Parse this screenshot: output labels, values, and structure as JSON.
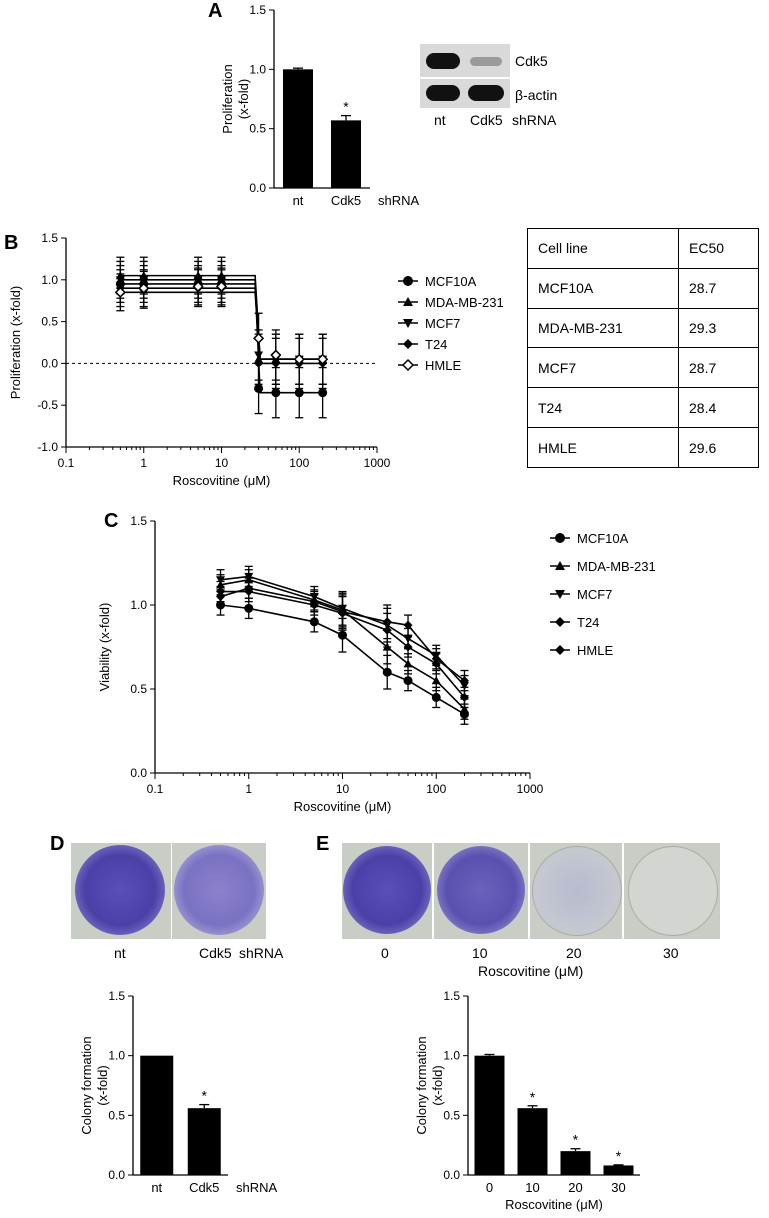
{
  "panels": {
    "A": {
      "letter": "A",
      "chart_data": {
        "type": "bar",
        "categories": [
          "nt",
          "Cdk5"
        ],
        "xsuffix": "shRNA",
        "values": [
          1.0,
          0.57
        ],
        "errors": [
          0.01,
          0.04
        ],
        "significance": [
          "",
          "*"
        ],
        "ylabel": "Proliferation (x-fold)",
        "ylim": [
          0,
          1.5
        ],
        "yticks": [
          "0.0",
          "0.5",
          "1.0",
          "1.5"
        ]
      },
      "blot": {
        "bands": [
          "Cdk5",
          "β-actin"
        ],
        "lanes": [
          "nt",
          "Cdk5",
          "shRNA"
        ]
      }
    },
    "B": {
      "letter": "B",
      "chart_data": {
        "type": "line",
        "xscale": "log",
        "xlabel": "Roscovitine (μM)",
        "ylabel": "Proliferation (x-fold)",
        "xlim": [
          0.1,
          1000
        ],
        "ylim": [
          -1.0,
          1.5
        ],
        "xticks": [
          "0.1",
          "1",
          "10",
          "100",
          "1000"
        ],
        "yticks": [
          "-1.0",
          "-0.5",
          "0.0",
          "0.5",
          "1.0",
          "1.5"
        ],
        "x": [
          0.5,
          1,
          5,
          10,
          30,
          50,
          100,
          200
        ],
        "series": [
          {
            "name": "MCF10A",
            "marker": "circle",
            "values": [
              0.95,
              0.95,
              0.95,
              0.95,
              -0.3,
              -0.35,
              -0.35,
              -0.35
            ]
          },
          {
            "name": "MDA-MB-231",
            "marker": "triangle-up",
            "values": [
              1.05,
              1.05,
              1.05,
              1.05,
              0.05,
              0.05,
              0.05,
              0.05
            ]
          },
          {
            "name": "MCF7",
            "marker": "triangle-down",
            "values": [
              1.0,
              1.0,
              1.0,
              1.0,
              0.1,
              0.05,
              0.05,
              0.05
            ]
          },
          {
            "name": "T24",
            "marker": "diamond",
            "values": [
              0.9,
              0.88,
              0.9,
              0.9,
              0.0,
              0.0,
              0.0,
              0.0
            ]
          },
          {
            "name": "HMLE",
            "marker": "diamond-open",
            "values": [
              0.85,
              0.9,
              0.92,
              0.92,
              0.3,
              0.1,
              0.05,
              0.05
            ]
          }
        ]
      },
      "ec50_table": {
        "header": [
          "Cell line",
          "EC50"
        ],
        "rows": [
          [
            "MCF10A",
            "28.7"
          ],
          [
            "MDA-MB-231",
            "29.3"
          ],
          [
            "MCF7",
            "28.7"
          ],
          [
            "T24",
            "28.4"
          ],
          [
            "HMLE",
            "29.6"
          ]
        ]
      }
    },
    "C": {
      "letter": "C",
      "chart_data": {
        "type": "line",
        "xscale": "log",
        "xlabel": "Roscovitine (μM)",
        "ylabel": "Viability (x-fold)",
        "xlim": [
          0.1,
          1000
        ],
        "ylim": [
          0.0,
          1.5
        ],
        "xticks": [
          "0.1",
          "1",
          "10",
          "100",
          "1000"
        ],
        "yticks": [
          "0.0",
          "0.5",
          "1.0",
          "1.5"
        ],
        "x": [
          0.5,
          1,
          5,
          10,
          30,
          50,
          100,
          200
        ],
        "series": [
          {
            "name": "MCF10A",
            "marker": "circle",
            "values": [
              1.0,
              0.98,
              0.9,
              0.82,
              0.6,
              0.55,
              0.45,
              0.35
            ]
          },
          {
            "name": "MDA-MB-231",
            "marker": "triangle-up",
            "values": [
              1.12,
              1.15,
              1.03,
              0.97,
              0.75,
              0.65,
              0.55,
              0.38
            ]
          },
          {
            "name": "MCF7",
            "marker": "triangle-down",
            "values": [
              1.15,
              1.17,
              1.05,
              0.98,
              0.88,
              0.8,
              0.7,
              0.52
            ]
          },
          {
            "name": "T24",
            "marker": "diamond",
            "values": [
              1.08,
              1.08,
              1.0,
              0.95,
              0.85,
              0.75,
              0.65,
              0.45
            ]
          },
          {
            "name": "HMLE",
            "marker": "diamond",
            "values": [
              1.05,
              1.1,
              1.02,
              0.96,
              0.9,
              0.88,
              0.68,
              0.55
            ]
          }
        ]
      }
    },
    "D": {
      "letter": "D",
      "plates": [
        "nt",
        "Cdk5"
      ],
      "plate_suffix": "shRNA",
      "chart_data": {
        "type": "bar",
        "categories": [
          "nt",
          "Cdk5"
        ],
        "xsuffix": "shRNA",
        "values": [
          1.0,
          0.56
        ],
        "errors": [
          0.0,
          0.03
        ],
        "significance": [
          "",
          "*"
        ],
        "ylabel": "Colony formation (x-fold)",
        "ylim": [
          0,
          1.5
        ],
        "yticks": [
          "0.0",
          "0.5",
          "1.0",
          "1.5"
        ]
      }
    },
    "E": {
      "letter": "E",
      "plates": [
        "0",
        "10",
        "20",
        "30"
      ],
      "plate_xlabel": "Roscovitine (μM)",
      "chart_data": {
        "type": "bar",
        "categories": [
          "0",
          "10",
          "20",
          "30"
        ],
        "values": [
          1.0,
          0.56,
          0.2,
          0.08
        ],
        "errors": [
          0.01,
          0.02,
          0.02,
          0.005
        ],
        "significance": [
          "",
          "*",
          "*",
          "*"
        ],
        "xlabel": "Roscovitine (μM)",
        "ylabel": "Colony formation (x-fold)",
        "ylim": [
          0,
          1.5
        ],
        "yticks": [
          "0.0",
          "0.5",
          "1.0",
          "1.5"
        ]
      }
    }
  },
  "colors": {
    "ink": "#000000",
    "stain": "#4b3fa8",
    "plate_bg": "#c8cdc6"
  }
}
